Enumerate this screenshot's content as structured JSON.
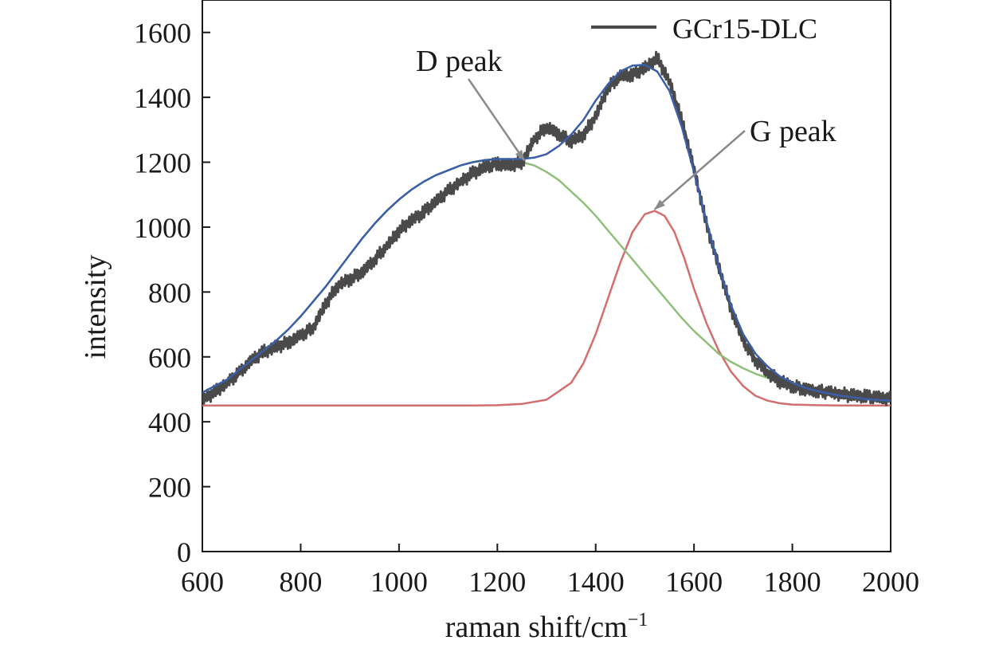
{
  "chart_data": {
    "type": "line",
    "title": "",
    "xlabel": "raman shift/cm",
    "xlabel_sup": "−1",
    "ylabel": "intensity",
    "xlim": [
      600,
      2000
    ],
    "ylim": [
      0,
      1700
    ],
    "xticks": [
      600,
      800,
      1000,
      1200,
      1400,
      1600,
      1800,
      2000
    ],
    "yticks": [
      0,
      200,
      400,
      600,
      800,
      1000,
      1200,
      1400,
      1600
    ],
    "grid": false,
    "legend": {
      "position": "top-right",
      "entries": [
        "GCr15-DLC"
      ]
    },
    "annotations": [
      {
        "text": "D peak",
        "points_to": [
          1255,
          1205
        ]
      },
      {
        "text": "G peak",
        "points_to": [
          1520,
          1055
        ]
      }
    ],
    "series": [
      {
        "name": "GCr15-DLC",
        "role": "measured",
        "color": "#4a4a4a",
        "x": [
          600,
          625,
          650,
          675,
          700,
          725,
          750,
          775,
          800,
          825,
          850,
          875,
          900,
          925,
          950,
          975,
          1000,
          1025,
          1050,
          1075,
          1100,
          1125,
          1150,
          1175,
          1200,
          1225,
          1250,
          1275,
          1300,
          1325,
          1350,
          1375,
          1400,
          1425,
          1450,
          1475,
          1500,
          1525,
          1550,
          1575,
          1600,
          1625,
          1650,
          1675,
          1700,
          1725,
          1750,
          1775,
          1800,
          1825,
          1850,
          1875,
          1900,
          1925,
          1950,
          1975,
          2000
        ],
        "y": [
          470,
          490,
          520,
          550,
          590,
          615,
          630,
          645,
          665,
          690,
          760,
          820,
          840,
          860,
          900,
          940,
          990,
          1020,
          1045,
          1080,
          1110,
          1140,
          1165,
          1185,
          1195,
          1190,
          1200,
          1270,
          1310,
          1285,
          1265,
          1285,
          1340,
          1430,
          1465,
          1470,
          1490,
          1520,
          1450,
          1330,
          1180,
          1010,
          880,
          750,
          650,
          590,
          550,
          525,
          510,
          500,
          495,
          490,
          485,
          480,
          478,
          475,
          470
        ]
      },
      {
        "name": "",
        "role": "cumulative-fit",
        "color": "#3a5ea8",
        "x": [
          600,
          625,
          650,
          675,
          700,
          725,
          750,
          775,
          800,
          825,
          850,
          875,
          900,
          925,
          950,
          975,
          1000,
          1025,
          1050,
          1075,
          1100,
          1125,
          1150,
          1175,
          1200,
          1225,
          1250,
          1275,
          1300,
          1325,
          1350,
          1375,
          1400,
          1425,
          1450,
          1475,
          1500,
          1525,
          1550,
          1575,
          1600,
          1625,
          1650,
          1675,
          1700,
          1725,
          1750,
          1775,
          1800,
          1825,
          1850,
          1875,
          1900,
          1925,
          1950,
          1975,
          2000
        ],
        "y": [
          490,
          510,
          530,
          560,
          590,
          620,
          650,
          685,
          725,
          770,
          815,
          865,
          915,
          965,
          1010,
          1050,
          1085,
          1115,
          1140,
          1160,
          1175,
          1190,
          1200,
          1207,
          1210,
          1210,
          1210,
          1214,
          1225,
          1250,
          1285,
          1330,
          1390,
          1440,
          1480,
          1498,
          1500,
          1480,
          1420,
          1310,
          1170,
          1020,
          880,
          760,
          670,
          610,
          570,
          540,
          520,
          505,
          495,
          487,
          480,
          475,
          470,
          467,
          465
        ]
      },
      {
        "name": "",
        "role": "D-peak-fit",
        "color": "#8fc07a",
        "x": [
          600,
          625,
          650,
          675,
          700,
          725,
          750,
          775,
          800,
          825,
          850,
          875,
          900,
          925,
          950,
          975,
          1000,
          1025,
          1050,
          1075,
          1100,
          1125,
          1150,
          1175,
          1200,
          1225,
          1250,
          1275,
          1300,
          1325,
          1350,
          1375,
          1400,
          1425,
          1450,
          1475,
          1500,
          1525,
          1550,
          1575,
          1600,
          1625,
          1650,
          1675,
          1700,
          1725,
          1750,
          1775,
          1800,
          1825,
          1850,
          1875,
          1900,
          1925,
          1950,
          1975,
          2000
        ],
        "y": [
          490,
          510,
          530,
          560,
          590,
          620,
          650,
          685,
          725,
          770,
          815,
          865,
          915,
          965,
          1010,
          1050,
          1085,
          1115,
          1140,
          1160,
          1175,
          1190,
          1200,
          1205,
          1207,
          1205,
          1200,
          1190,
          1170,
          1145,
          1110,
          1075,
          1035,
          990,
          945,
          900,
          855,
          810,
          765,
          720,
          680,
          645,
          610,
          585,
          565,
          548,
          535,
          520,
          510,
          502,
          495,
          488,
          480,
          475,
          470,
          467,
          465
        ]
      },
      {
        "name": "",
        "role": "G-peak-fit",
        "color": "#d46e6e",
        "x": [
          600,
          1150,
          1200,
          1250,
          1300,
          1350,
          1375,
          1400,
          1425,
          1450,
          1475,
          1500,
          1520,
          1540,
          1560,
          1580,
          1600,
          1625,
          1650,
          1675,
          1700,
          1725,
          1750,
          1775,
          1800,
          1850,
          1900,
          2000
        ],
        "y": [
          450,
          450,
          451,
          455,
          468,
          520,
          580,
          670,
          780,
          890,
          985,
          1040,
          1050,
          1035,
          985,
          905,
          810,
          705,
          620,
          555,
          510,
          480,
          465,
          457,
          453,
          451,
          450,
          450
        ]
      }
    ]
  }
}
